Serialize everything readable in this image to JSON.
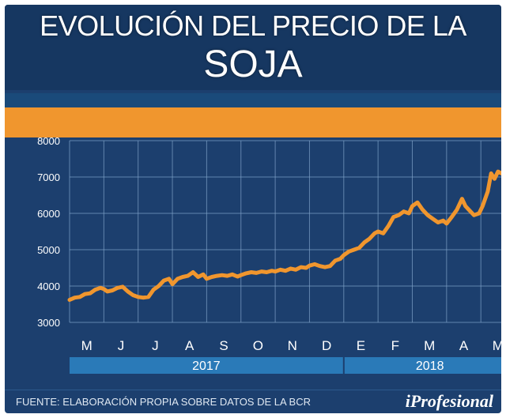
{
  "header": {
    "title_line1": "EVOLUCIÓN DEL PRECIO DE LA",
    "title_line2": "SOJA"
  },
  "footer": {
    "source": "FUENTE:   ELABORACIÓN PROPIA SOBRE DATOS DE LA BCR",
    "brand": "iProfesional"
  },
  "colors": {
    "background": "#1c3f6e",
    "title_band": "#163761",
    "accent_band": "#f0962e",
    "line": "#f0962e",
    "year_bar": "#2a7ab8",
    "grid": "#7fa3c8"
  },
  "chart_data": {
    "type": "line",
    "ylim": [
      3000,
      8000
    ],
    "yticks": [
      3000,
      4000,
      5000,
      6000,
      7000,
      8000
    ],
    "months": [
      "M",
      "J",
      "J",
      "A",
      "S",
      "O",
      "N",
      "D",
      "E",
      "F",
      "M",
      "A",
      "M"
    ],
    "years": [
      {
        "label": "2017",
        "from_month": 0,
        "to_month": 8
      },
      {
        "label": "2018",
        "from_month": 8,
        "to_month": 13
      }
    ],
    "x_unit": "month index from start of May 2017",
    "series": [
      {
        "points": [
          [
            0.0,
            3620
          ],
          [
            0.15,
            3680
          ],
          [
            0.3,
            3700
          ],
          [
            0.45,
            3780
          ],
          [
            0.6,
            3800
          ],
          [
            0.75,
            3900
          ],
          [
            0.9,
            3950
          ],
          [
            1.0,
            3920
          ],
          [
            1.1,
            3850
          ],
          [
            1.25,
            3880
          ],
          [
            1.4,
            3950
          ],
          [
            1.55,
            3980
          ],
          [
            1.7,
            3850
          ],
          [
            1.85,
            3750
          ],
          [
            2.0,
            3700
          ],
          [
            2.15,
            3680
          ],
          [
            2.3,
            3700
          ],
          [
            2.45,
            3900
          ],
          [
            2.6,
            4000
          ],
          [
            2.75,
            4150
          ],
          [
            2.9,
            4200
          ],
          [
            3.0,
            4050
          ],
          [
            3.15,
            4200
          ],
          [
            3.3,
            4250
          ],
          [
            3.45,
            4280
          ],
          [
            3.6,
            4380
          ],
          [
            3.75,
            4250
          ],
          [
            3.9,
            4320
          ],
          [
            4.0,
            4200
          ],
          [
            4.15,
            4250
          ],
          [
            4.3,
            4280
          ],
          [
            4.45,
            4300
          ],
          [
            4.6,
            4280
          ],
          [
            4.75,
            4320
          ],
          [
            4.9,
            4260
          ],
          [
            5.0,
            4300
          ],
          [
            5.15,
            4350
          ],
          [
            5.3,
            4380
          ],
          [
            5.45,
            4360
          ],
          [
            5.6,
            4400
          ],
          [
            5.75,
            4380
          ],
          [
            5.9,
            4420
          ],
          [
            6.0,
            4400
          ],
          [
            6.15,
            4450
          ],
          [
            6.3,
            4420
          ],
          [
            6.45,
            4480
          ],
          [
            6.6,
            4450
          ],
          [
            6.75,
            4520
          ],
          [
            6.9,
            4500
          ],
          [
            7.0,
            4560
          ],
          [
            7.15,
            4600
          ],
          [
            7.3,
            4550
          ],
          [
            7.45,
            4520
          ],
          [
            7.6,
            4550
          ],
          [
            7.75,
            4700
          ],
          [
            7.9,
            4750
          ],
          [
            8.0,
            4850
          ],
          [
            8.15,
            4950
          ],
          [
            8.3,
            5000
          ],
          [
            8.45,
            5050
          ],
          [
            8.6,
            5200
          ],
          [
            8.75,
            5300
          ],
          [
            8.9,
            5450
          ],
          [
            9.0,
            5500
          ],
          [
            9.15,
            5450
          ],
          [
            9.3,
            5650
          ],
          [
            9.45,
            5900
          ],
          [
            9.6,
            5950
          ],
          [
            9.75,
            6050
          ],
          [
            9.9,
            6000
          ],
          [
            10.0,
            6200
          ],
          [
            10.15,
            6300
          ],
          [
            10.3,
            6100
          ],
          [
            10.45,
            5950
          ],
          [
            10.6,
            5850
          ],
          [
            10.75,
            5750
          ],
          [
            10.9,
            5800
          ],
          [
            11.0,
            5720
          ],
          [
            11.15,
            5900
          ],
          [
            11.3,
            6100
          ],
          [
            11.45,
            6400
          ],
          [
            11.55,
            6200
          ],
          [
            11.65,
            6100
          ],
          [
            11.8,
            5950
          ],
          [
            11.95,
            6000
          ],
          [
            12.05,
            6200
          ],
          [
            12.2,
            6600
          ],
          [
            12.3,
            7100
          ],
          [
            12.4,
            6950
          ],
          [
            12.5,
            7150
          ],
          [
            12.6,
            7100
          ],
          [
            12.7,
            7100
          ]
        ]
      }
    ]
  }
}
